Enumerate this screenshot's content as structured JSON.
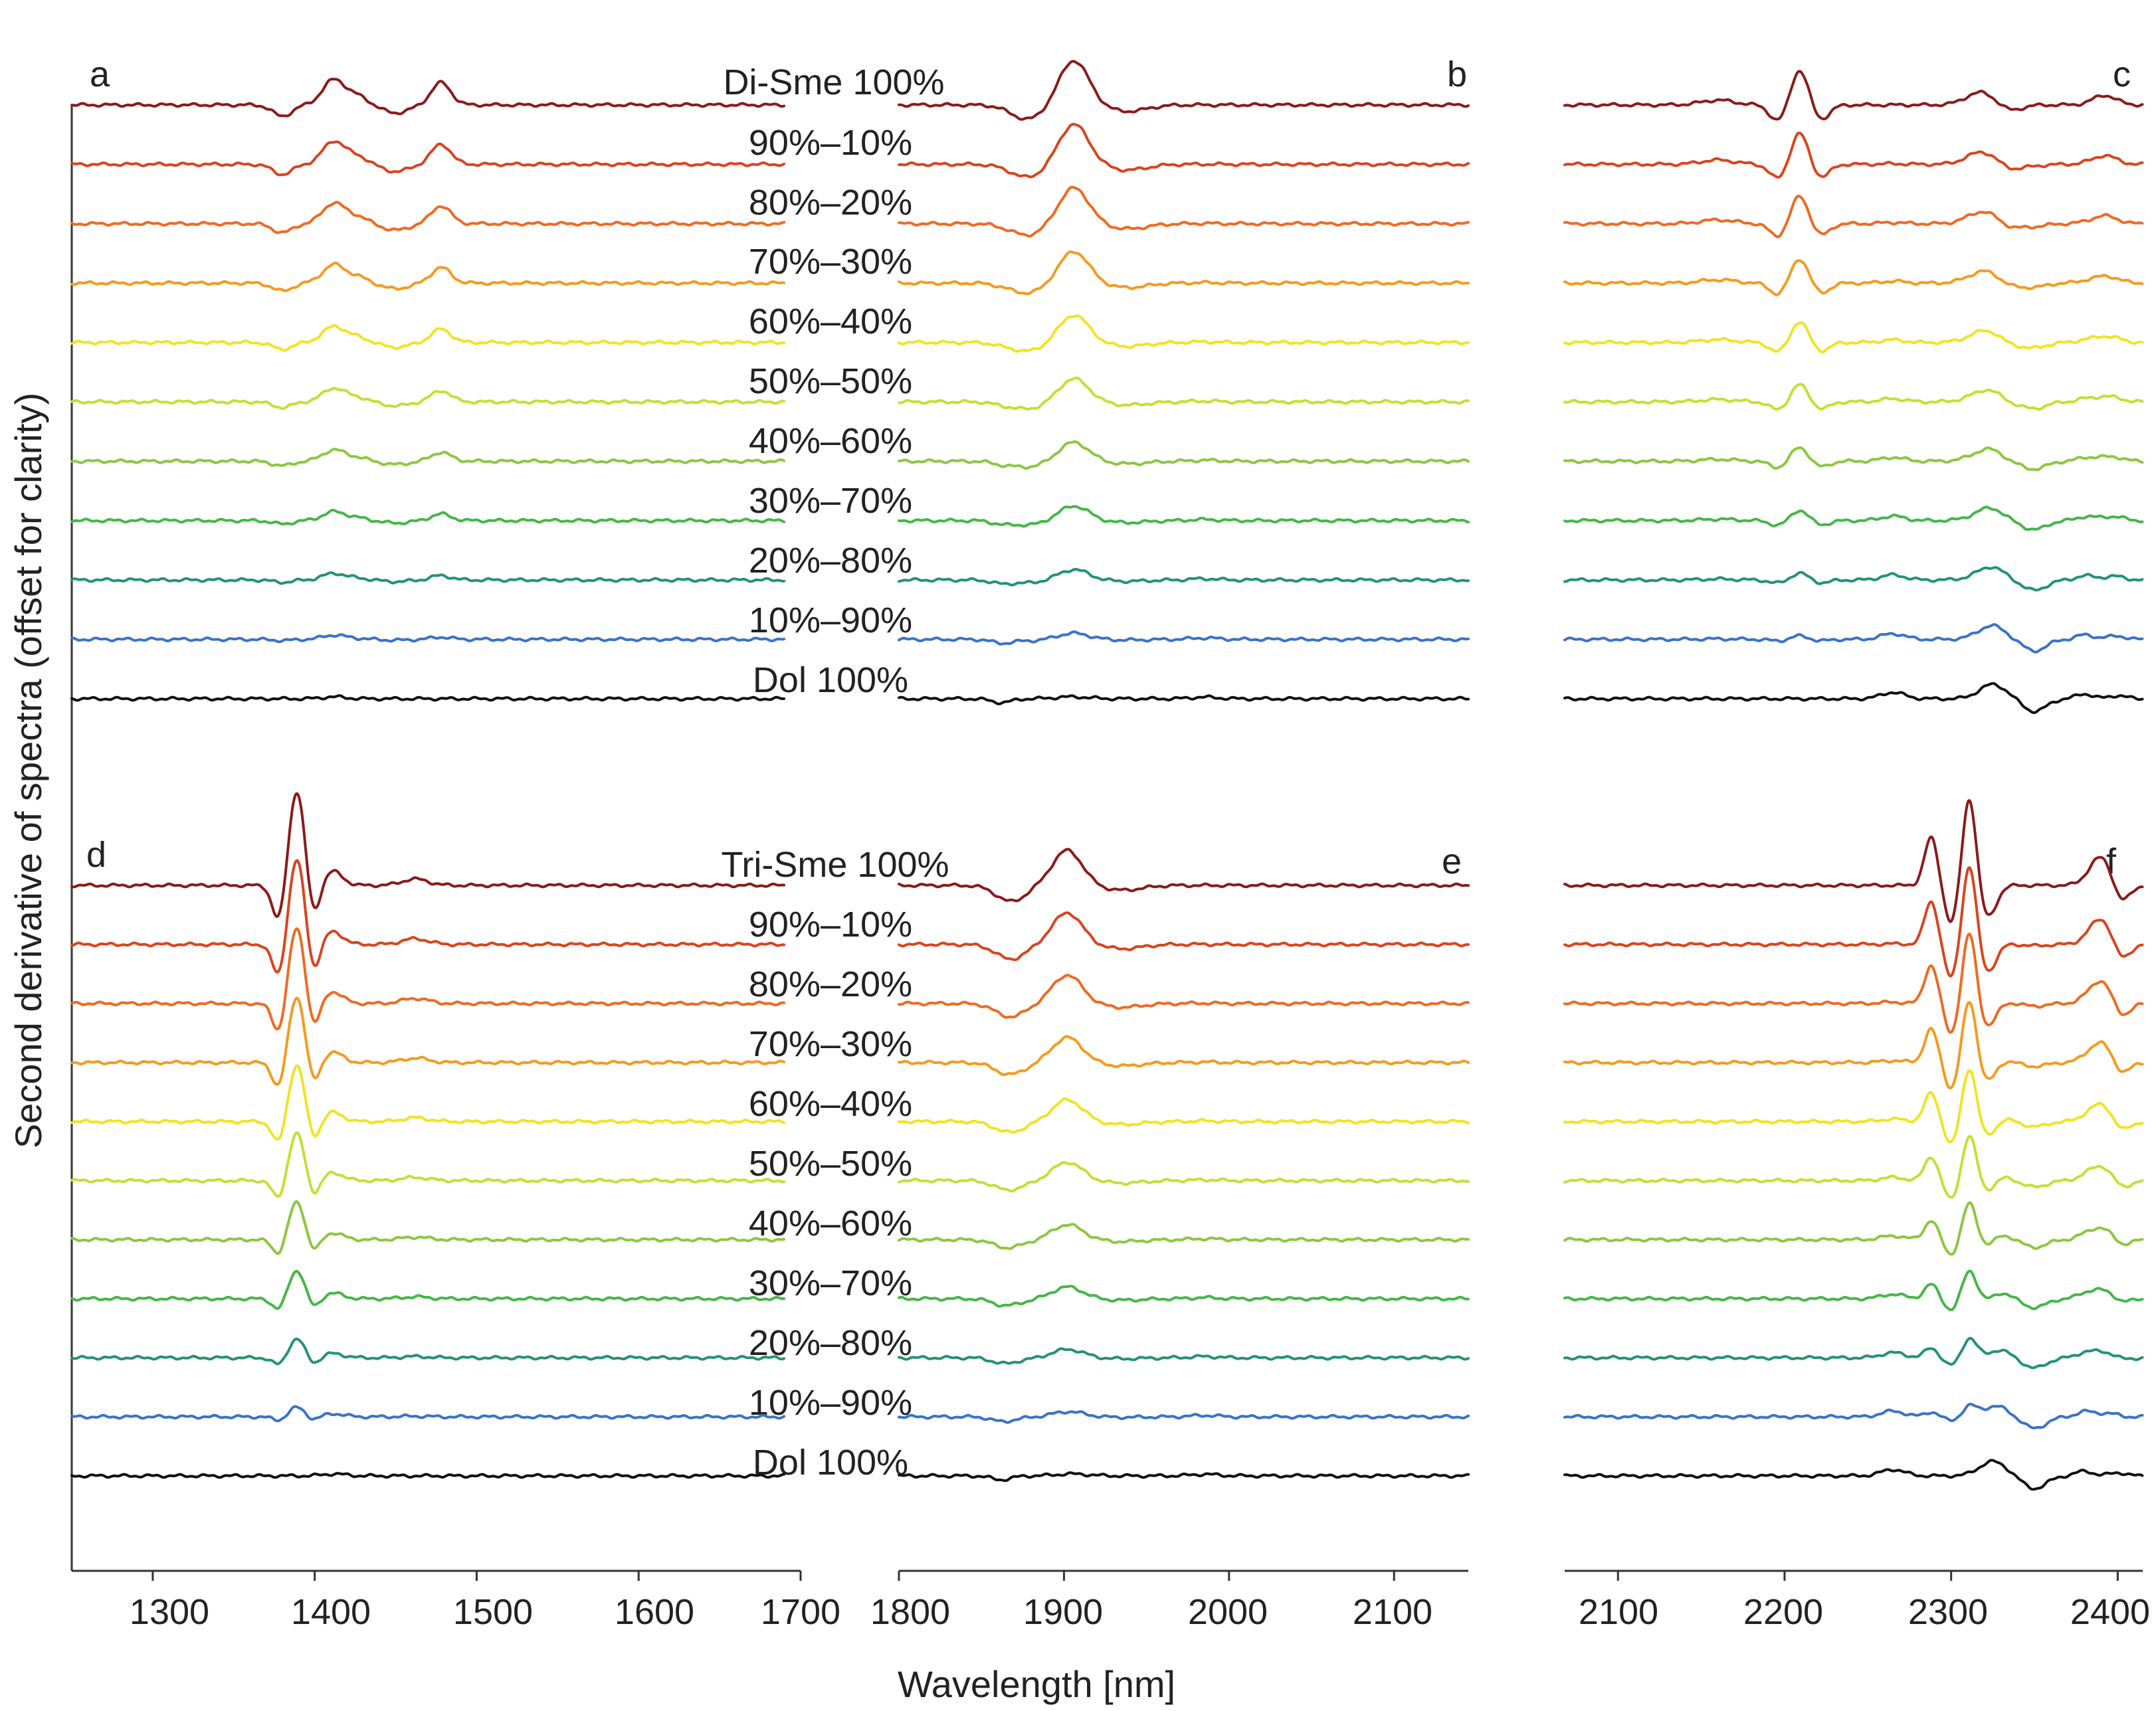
{
  "chart_data": {
    "type": "line",
    "ylabel": "Second derivative of spectra (offset for clarity)",
    "xlabel": "Wavelength [nm]",
    "x_axes": [
      {
        "name": "left",
        "range": [
          1250,
          1700
        ],
        "ticks": [
          "1300",
          "1400",
          "1500",
          "1600",
          "1700"
        ]
      },
      {
        "name": "middle",
        "range": [
          1800,
          2145
        ],
        "ticks": [
          "1800",
          "1900",
          "2000",
          "2100"
        ]
      },
      {
        "name": "right",
        "range": [
          2068,
          2415
        ],
        "ticks": [
          "2100",
          "2200",
          "2300",
          "2400"
        ]
      }
    ],
    "series_colors": [
      "#8b1a1a",
      "#d9441e",
      "#ef6a22",
      "#f59a1f",
      "#f0e422",
      "#c4df35",
      "#8cc740",
      "#45b649",
      "#23927a",
      "#3a73c7",
      "#111111"
    ],
    "top_group": {
      "endmember": "Di-Sme",
      "labels": [
        "Di-Sme 100%",
        "90%–10%",
        "80%–20%",
        "70%–30%",
        "60%–40%",
        "50%–50%",
        "40%–60%",
        "30%–70%",
        "20%–80%",
        "10%–90%",
        "Dol 100%"
      ],
      "panels": [
        {
          "letter": "a",
          "axis": "left",
          "x_range": [
            1250,
            1690
          ],
          "bands": [
            {
              "center": 1412,
              "width": 7,
              "amp": 0.8
            },
            {
              "center": 1427,
              "width": 6,
              "amp": 0.25
            },
            {
              "center": 1478,
              "width": 6,
              "amp": 0.7
            },
            {
              "center": 1380,
              "width": 6,
              "amp": -0.35
            },
            {
              "center": 1450,
              "width": 8,
              "amp": -0.25
            }
          ],
          "dol_bands": [
            {
              "center": 1412,
              "width": 7,
              "amp": 0.06
            }
          ]
        },
        {
          "letter": "b",
          "axis": "middle",
          "x_range": [
            1800,
            2145
          ],
          "bands": [
            {
              "center": 1906,
              "width": 9,
              "amp": 1.4
            },
            {
              "center": 1878,
              "width": 10,
              "amp": -0.45
            },
            {
              "center": 1938,
              "width": 12,
              "amp": -0.2
            }
          ],
          "dol_bands": [
            {
              "center": 1862,
              "width": 6,
              "amp": -0.12
            },
            {
              "center": 1905,
              "width": 10,
              "amp": 0.06
            },
            {
              "center": 1985,
              "width": 8,
              "amp": 0.05
            }
          ]
        },
        {
          "letter": "c",
          "axis": "right",
          "x_range": [
            2068,
            2415
          ],
          "bands": [
            {
              "center": 2209,
              "width": 5,
              "amp": 1.1
            },
            {
              "center": 2196,
              "width": 5,
              "amp": -0.5
            },
            {
              "center": 2222,
              "width": 5,
              "amp": -0.45
            },
            {
              "center": 2318,
              "width": 9,
              "amp": 0.4
            },
            {
              "center": 2335,
              "width": 7,
              "amp": -0.2
            },
            {
              "center": 2392,
              "width": 7,
              "amp": 0.3
            },
            {
              "center": 2160,
              "width": 10,
              "amp": 0.15
            }
          ],
          "dol_bands": [
            {
              "center": 2265,
              "width": 7,
              "amp": 0.2
            },
            {
              "center": 2325,
              "width": 8,
              "amp": 0.45
            },
            {
              "center": 2350,
              "width": 7,
              "amp": -0.4
            },
            {
              "center": 2380,
              "width": 5,
              "amp": 0.15
            },
            {
              "center": 2400,
              "width": 5,
              "amp": 0.1
            }
          ]
        }
      ]
    },
    "bottom_group": {
      "endmember": "Tri-Sme",
      "labels": [
        "Tri-Sme 100%",
        "90%–10%",
        "80%–20%",
        "70%–30%",
        "60%–40%",
        "50%–50%",
        "40%–60%",
        "30%–70%",
        "20%–80%",
        "10%–90%",
        "Dol 100%"
      ],
      "panels": [
        {
          "letter": "d",
          "axis": "left",
          "x_range": [
            1250,
            1690
          ],
          "bands": [
            {
              "center": 1389,
              "width": 5,
              "amp": 3.0
            },
            {
              "center": 1378,
              "width": 4,
              "amp": -1.2
            },
            {
              "center": 1399,
              "width": 4,
              "amp": -1.1
            },
            {
              "center": 1411,
              "width": 6,
              "amp": 0.45
            },
            {
              "center": 1462,
              "width": 8,
              "amp": 0.2
            }
          ],
          "dol_bands": [
            {
              "center": 1412,
              "width": 7,
              "amp": 0.06
            }
          ]
        },
        {
          "letter": "e",
          "axis": "middle",
          "x_range": [
            1800,
            2145
          ],
          "bands": [
            {
              "center": 1902,
              "width": 9,
              "amp": 1.1
            },
            {
              "center": 1868,
              "width": 9,
              "amp": -0.5
            },
            {
              "center": 1935,
              "width": 12,
              "amp": -0.15
            }
          ],
          "dol_bands": [
            {
              "center": 1862,
              "width": 6,
              "amp": -0.12
            },
            {
              "center": 1905,
              "width": 10,
              "amp": 0.06
            },
            {
              "center": 1985,
              "width": 8,
              "amp": 0.05
            }
          ]
        },
        {
          "letter": "f",
          "axis": "right",
          "x_range": [
            2068,
            2415
          ],
          "bands": [
            {
              "center": 2311,
              "width": 4,
              "amp": 2.8
            },
            {
              "center": 2288,
              "width": 4,
              "amp": 1.5
            },
            {
              "center": 2300,
              "width": 4,
              "amp": -1.2
            },
            {
              "center": 2322,
              "width": 5,
              "amp": -1.0
            },
            {
              "center": 2390,
              "width": 7,
              "amp": 0.9
            },
            {
              "center": 2402,
              "width": 5,
              "amp": -0.6
            }
          ],
          "dol_bands": [
            {
              "center": 2265,
              "width": 7,
              "amp": 0.2
            },
            {
              "center": 2325,
              "width": 8,
              "amp": 0.45
            },
            {
              "center": 2350,
              "width": 7,
              "amp": -0.4
            },
            {
              "center": 2380,
              "width": 5,
              "amp": 0.15
            },
            {
              "center": 2400,
              "width": 5,
              "amp": 0.1
            }
          ]
        }
      ]
    }
  }
}
